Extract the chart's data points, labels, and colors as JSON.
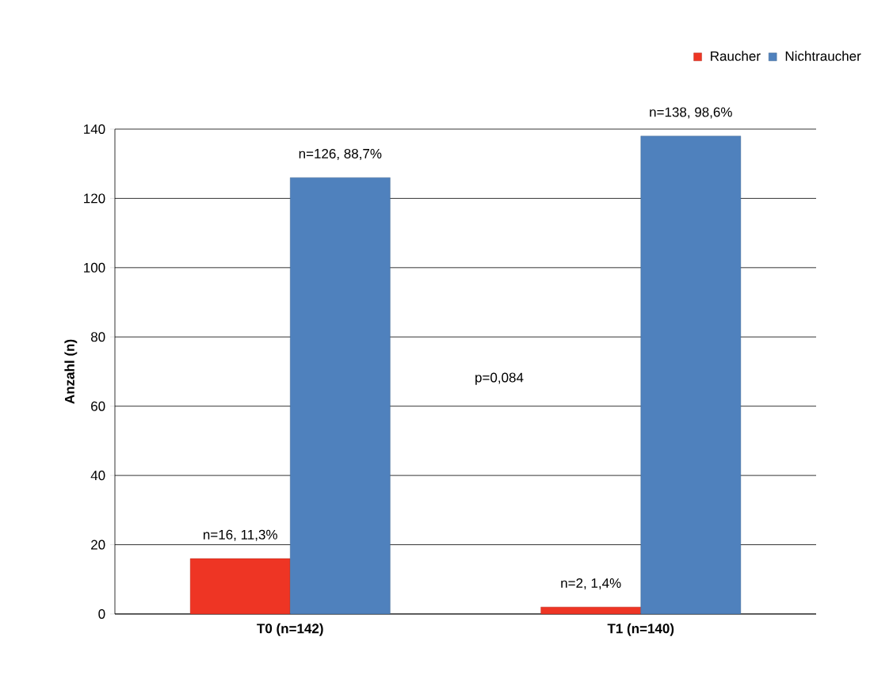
{
  "chart_data": {
    "type": "bar",
    "ylabel": "Anzahl (n)",
    "categories": [
      "T0 (n=142)",
      "T1 (n=140)"
    ],
    "series": [
      {
        "name": "Raucher",
        "color": "#ee3524",
        "values": [
          16,
          2
        ],
        "value_labels": [
          "n=16, 11,3%",
          "n=2, 1,4%"
        ]
      },
      {
        "name": "Nichtraucher",
        "color": "#4f81bd",
        "values": [
          126,
          138
        ],
        "value_labels": [
          "n=126, 88,7%",
          "n=138, 98,6%"
        ]
      }
    ],
    "ylim": [
      0,
      140
    ],
    "yticks": [
      0,
      20,
      40,
      60,
      80,
      100,
      120,
      140
    ],
    "grid": "y",
    "legend": "top right",
    "annotations": [
      "p=0,084"
    ]
  }
}
